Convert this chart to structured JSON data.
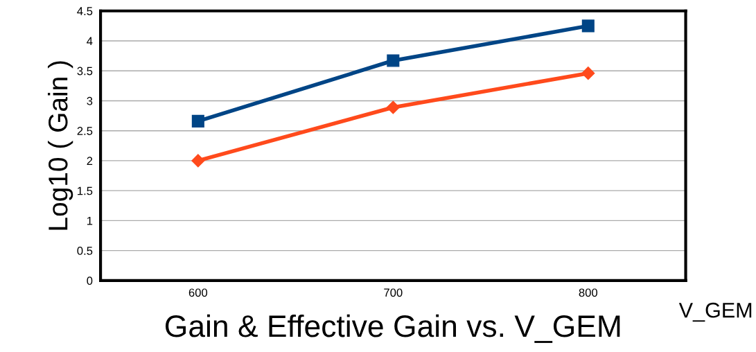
{
  "chart_data": {
    "type": "line",
    "title": "Gain & Effective Gain vs. V_GEM",
    "xlabel": "V_GEM",
    "ylabel": "Log10 ( Gain )",
    "categories": [
      "600",
      "700",
      "800"
    ],
    "series": [
      {
        "color": "#004586",
        "marker": "square",
        "values": [
          2.66,
          3.67,
          4.25
        ]
      },
      {
        "color": "#ff4a1c",
        "marker": "diamond",
        "values": [
          2.0,
          2.89,
          3.46
        ]
      }
    ],
    "ylim": [
      0,
      4.5
    ],
    "yticks": [
      0,
      0.5,
      1,
      1.5,
      2,
      2.5,
      3,
      3.5,
      4,
      4.5
    ],
    "grid": "y",
    "legend": false,
    "line_style": "solid"
  }
}
